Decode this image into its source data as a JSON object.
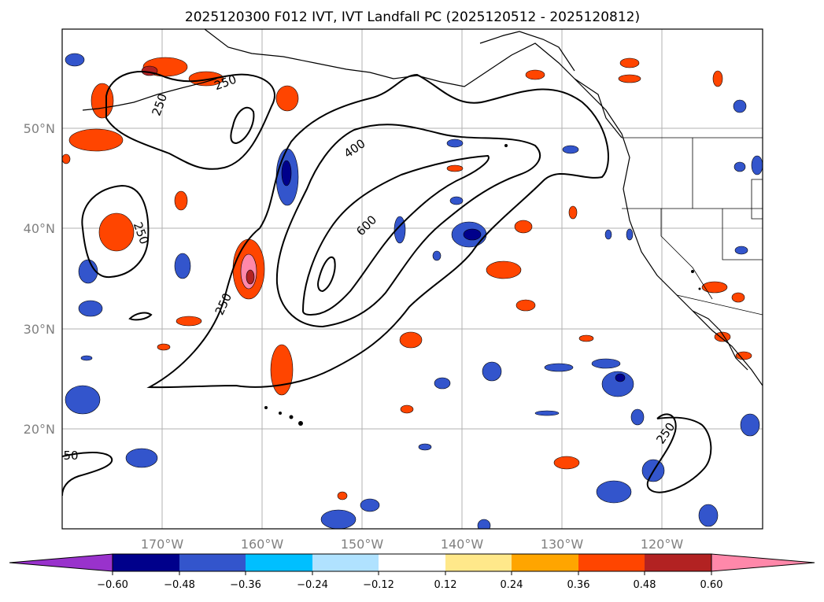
{
  "title": "2025120300 F012 IVT, IVT Landfall PC (2025120512 - 2025120812)",
  "lat_labels": [
    "50°N",
    "40°N",
    "30°N",
    "20°N"
  ],
  "lon_labels": [
    "170°W",
    "160°W",
    "150°W",
    "140°W",
    "130°W",
    "120°W"
  ],
  "contour_labels": [
    "250",
    "250",
    "250",
    "250",
    "400",
    "600",
    "250",
    "50"
  ],
  "colorbar": {
    "tick_labels": [
      "−0.60",
      "−0.48",
      "−0.36",
      "−0.24",
      "−0.12",
      "0.12",
      "0.24",
      "0.36",
      "0.48",
      "0.60"
    ],
    "colors": [
      "#9932cc",
      "#00008b",
      "#3355cc",
      "#00bfff",
      "#b0e2ff",
      "#ffffff",
      "#ffe88a",
      "#ffa500",
      "#ff4500",
      "#b22222",
      "#ff88aa"
    ]
  }
}
